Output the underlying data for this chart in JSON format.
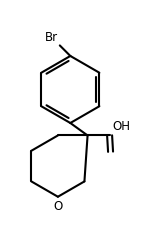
{
  "background_color": "#ffffff",
  "line_color": "#000000",
  "line_width": 1.5,
  "br_label": "Br",
  "oh_label": "OH",
  "o_label": "O",
  "figsize": [
    1.56,
    2.46
  ],
  "dpi": 100
}
